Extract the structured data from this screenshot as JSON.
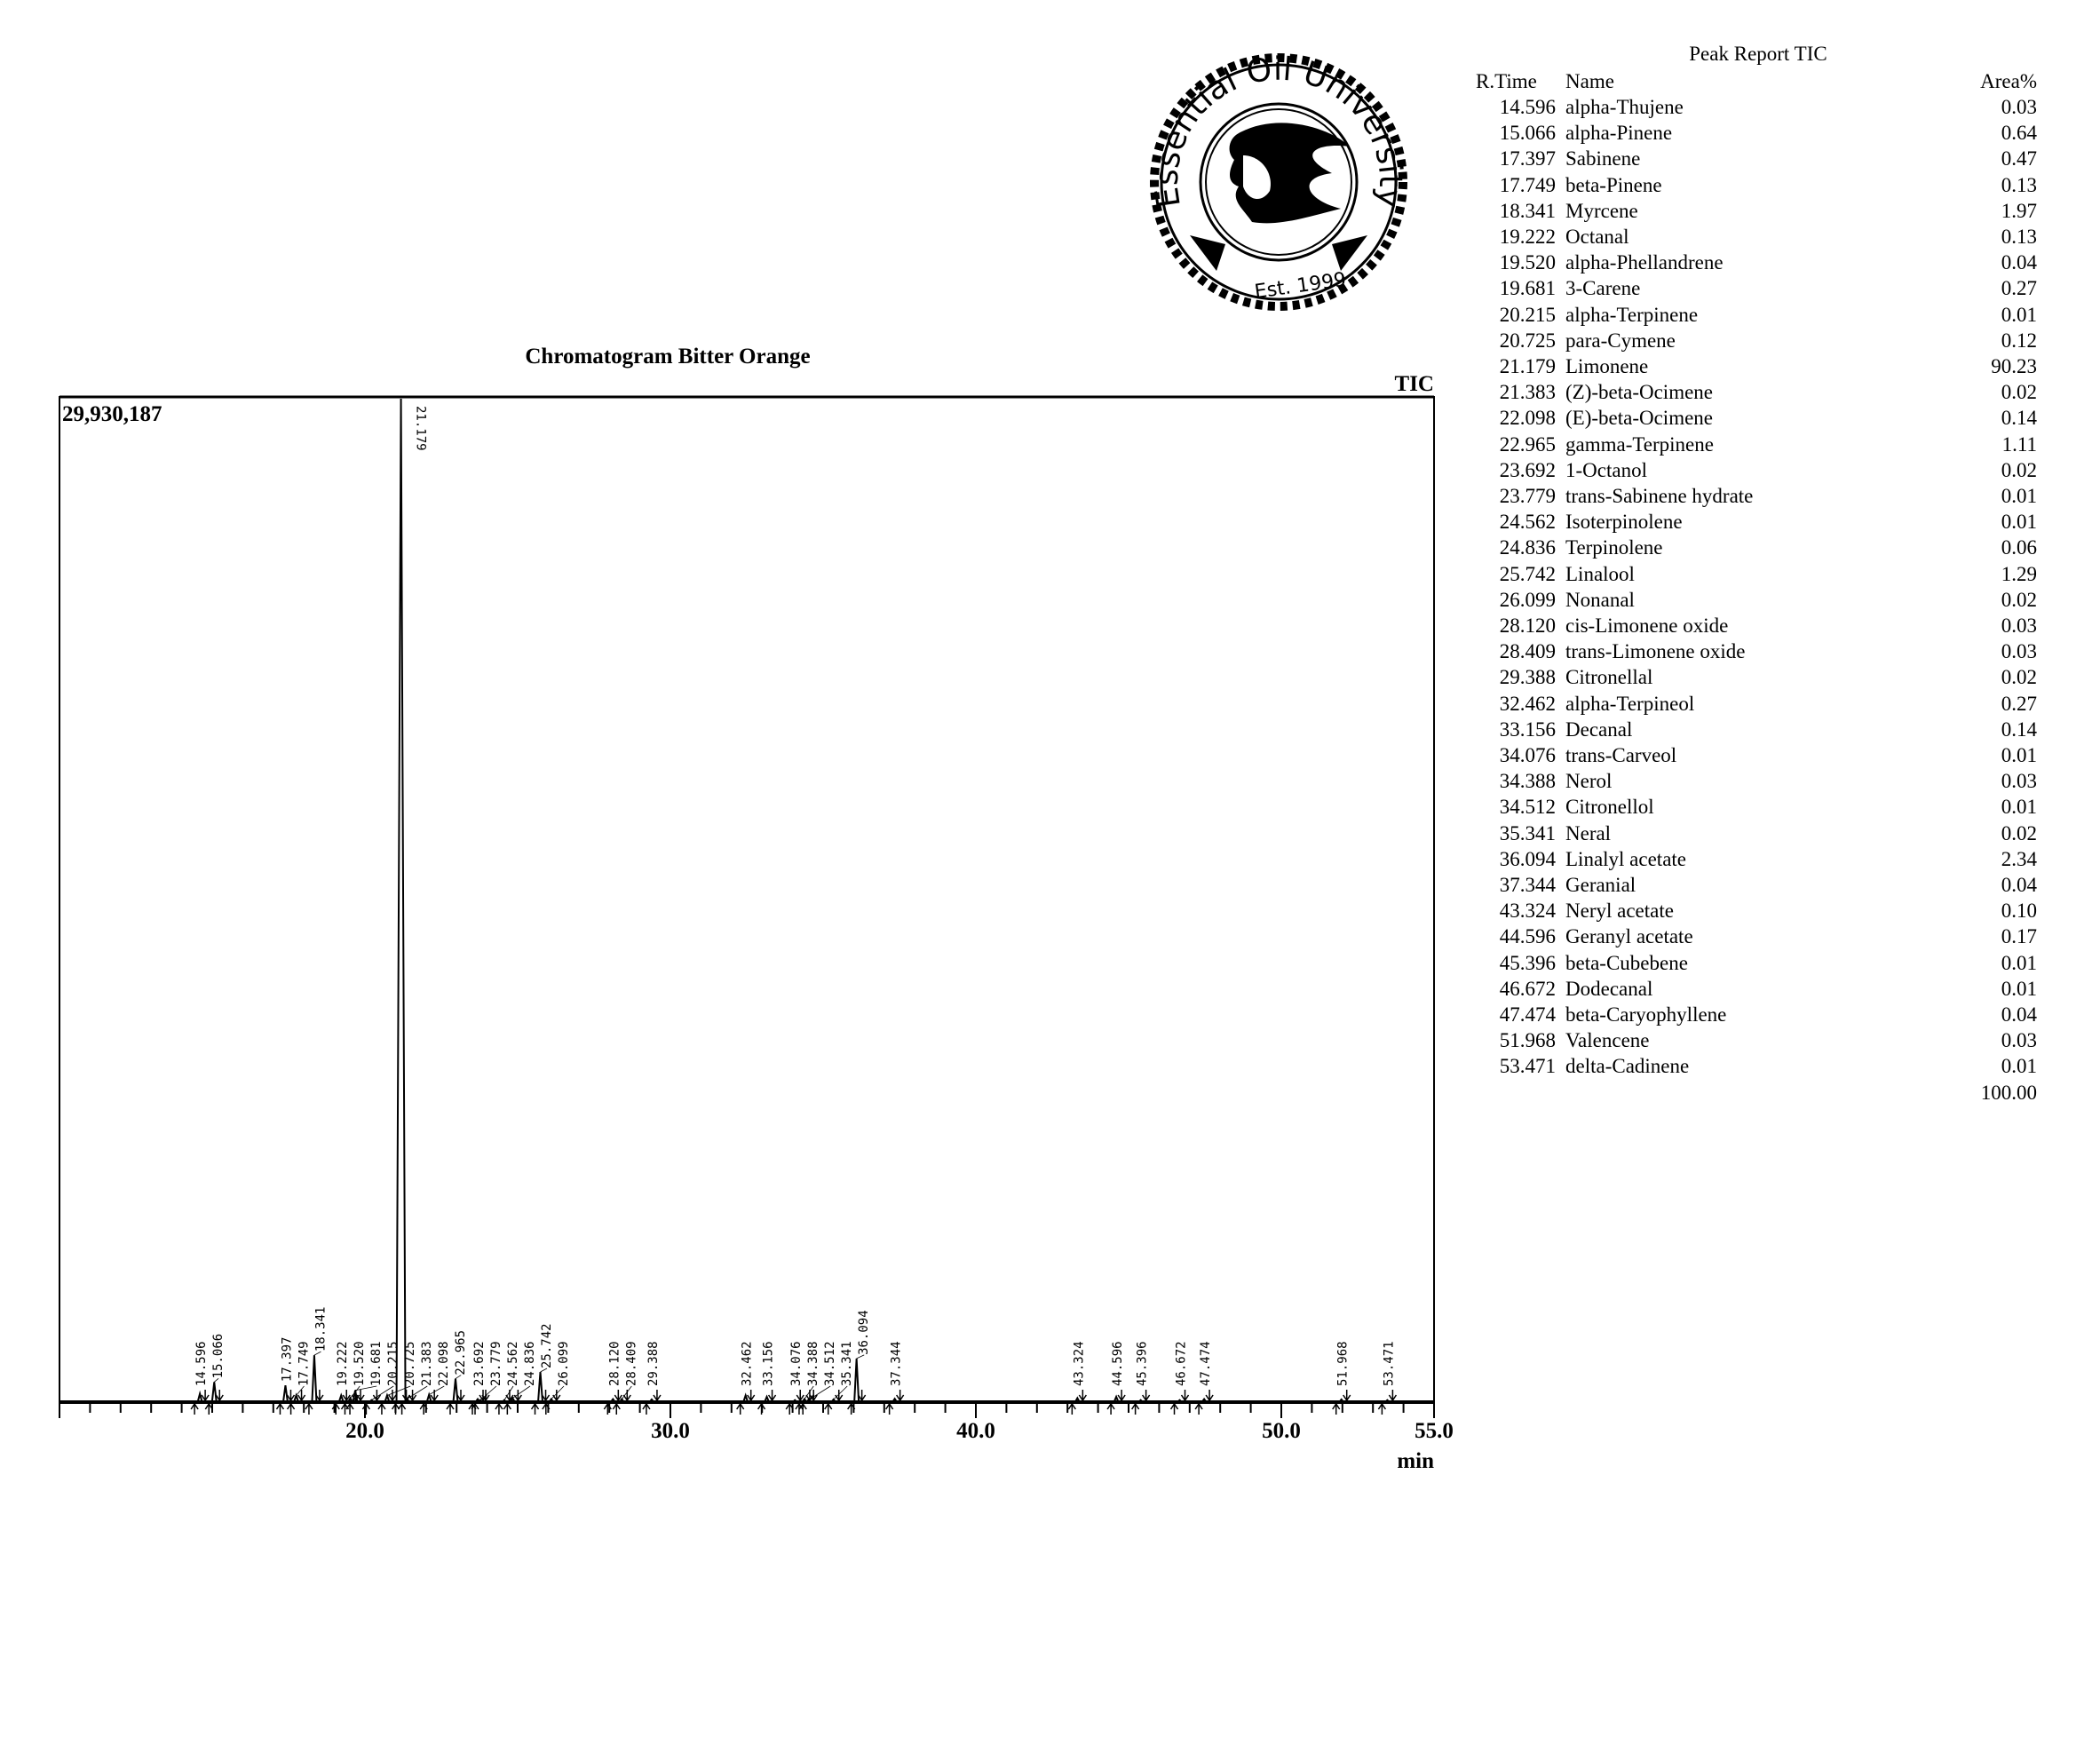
{
  "chart_data": {
    "type": "line",
    "title": "Chromatogram Bitter Orange",
    "series_label": "TIC",
    "y_max_label": "29,930,187",
    "ylim": [
      0,
      29930187
    ],
    "xlabel": "min",
    "xlim": [
      10.0,
      55.0
    ],
    "x_ticks": [
      "20.0",
      "30.0",
      "40.0",
      "50.0",
      "55.0"
    ],
    "x_tick_values": [
      20,
      30,
      40,
      50,
      55
    ],
    "grid": false,
    "color": "#000000",
    "peaks": [
      {
        "rt": "14.596",
        "intensity": 250000
      },
      {
        "rt": "15.066",
        "intensity": 600000
      },
      {
        "rt": "17.397",
        "intensity": 500000
      },
      {
        "rt": "17.749",
        "intensity": 200000
      },
      {
        "rt": "18.341",
        "intensity": 1400000
      },
      {
        "rt": "19.222",
        "intensity": 200000
      },
      {
        "rt": "19.520",
        "intensity": 120000
      },
      {
        "rt": "19.681",
        "intensity": 350000
      },
      {
        "rt": "20.215",
        "intensity": 60000
      },
      {
        "rt": "20.725",
        "intensity": 200000
      },
      {
        "rt": "21.179",
        "intensity": 29930187
      },
      {
        "rt": "21.383",
        "intensity": 100000
      },
      {
        "rt": "22.098",
        "intensity": 220000
      },
      {
        "rt": "22.965",
        "intensity": 700000
      },
      {
        "rt": "23.692",
        "intensity": 90000
      },
      {
        "rt": "23.779",
        "intensity": 60000
      },
      {
        "rt": "24.562",
        "intensity": 60000
      },
      {
        "rt": "24.836",
        "intensity": 120000
      },
      {
        "rt": "25.742",
        "intensity": 900000
      },
      {
        "rt": "26.099",
        "intensity": 90000
      },
      {
        "rt": "28.120",
        "intensity": 90000
      },
      {
        "rt": "28.409",
        "intensity": 90000
      },
      {
        "rt": "29.388",
        "intensity": 80000
      },
      {
        "rt": "32.462",
        "intensity": 200000
      },
      {
        "rt": "33.156",
        "intensity": 160000
      },
      {
        "rt": "34.076",
        "intensity": 60000
      },
      {
        "rt": "34.388",
        "intensity": 90000
      },
      {
        "rt": "34.512",
        "intensity": 60000
      },
      {
        "rt": "35.341",
        "intensity": 80000
      },
      {
        "rt": "36.094",
        "intensity": 1300000
      },
      {
        "rt": "37.344",
        "intensity": 100000
      },
      {
        "rt": "43.324",
        "intensity": 120000
      },
      {
        "rt": "44.596",
        "intensity": 160000
      },
      {
        "rt": "45.396",
        "intensity": 60000
      },
      {
        "rt": "46.672",
        "intensity": 60000
      },
      {
        "rt": "47.474",
        "intensity": 90000
      },
      {
        "rt": "51.968",
        "intensity": 80000
      },
      {
        "rt": "53.471",
        "intensity": 60000
      }
    ]
  },
  "logo": {
    "text": "Essential Oil University",
    "est": "Est. 1999"
  },
  "report": {
    "title": "Peak Report TIC",
    "headers": {
      "rt": "R.Time",
      "name": "Name",
      "area": "Area%"
    },
    "rows": [
      {
        "rt": "14.596",
        "name": "alpha-Thujene",
        "area": "0.03"
      },
      {
        "rt": "15.066",
        "name": "alpha-Pinene",
        "area": "0.64"
      },
      {
        "rt": "17.397",
        "name": "Sabinene",
        "area": "0.47"
      },
      {
        "rt": "17.749",
        "name": "beta-Pinene",
        "area": "0.13"
      },
      {
        "rt": "18.341",
        "name": "Myrcene",
        "area": "1.97"
      },
      {
        "rt": "19.222",
        "name": "Octanal",
        "area": "0.13"
      },
      {
        "rt": "19.520",
        "name": "alpha-Phellandrene",
        "area": "0.04"
      },
      {
        "rt": "19.681",
        "name": "3-Carene",
        "area": "0.27"
      },
      {
        "rt": "20.215",
        "name": "alpha-Terpinene",
        "area": "0.01"
      },
      {
        "rt": "20.725",
        "name": "para-Cymene",
        "area": "0.12"
      },
      {
        "rt": "21.179",
        "name": "Limonene",
        "area": "90.23"
      },
      {
        "rt": "21.383",
        "name": "(Z)-beta-Ocimene",
        "area": "0.02"
      },
      {
        "rt": "22.098",
        "name": "(E)-beta-Ocimene",
        "area": "0.14"
      },
      {
        "rt": "22.965",
        "name": "gamma-Terpinene",
        "area": "1.11"
      },
      {
        "rt": "23.692",
        "name": "1-Octanol",
        "area": "0.02"
      },
      {
        "rt": "23.779",
        "name": "trans-Sabinene hydrate",
        "area": "0.01"
      },
      {
        "rt": "24.562",
        "name": "Isoterpinolene",
        "area": "0.01"
      },
      {
        "rt": "24.836",
        "name": "Terpinolene",
        "area": "0.06"
      },
      {
        "rt": "25.742",
        "name": "Linalool",
        "area": "1.29"
      },
      {
        "rt": "26.099",
        "name": "Nonanal",
        "area": "0.02"
      },
      {
        "rt": "28.120",
        "name": "cis-Limonene oxide",
        "area": "0.03"
      },
      {
        "rt": "28.409",
        "name": "trans-Limonene oxide",
        "area": "0.03"
      },
      {
        "rt": "29.388",
        "name": "Citronellal",
        "area": "0.02"
      },
      {
        "rt": "32.462",
        "name": "alpha-Terpineol",
        "area": "0.27"
      },
      {
        "rt": "33.156",
        "name": "Decanal",
        "area": "0.14"
      },
      {
        "rt": "34.076",
        "name": "trans-Carveol",
        "area": "0.01"
      },
      {
        "rt": "34.388",
        "name": "Nerol",
        "area": "0.03"
      },
      {
        "rt": "34.512",
        "name": "Citronellol",
        "area": "0.01"
      },
      {
        "rt": "35.341",
        "name": "Neral",
        "area": "0.02"
      },
      {
        "rt": "36.094",
        "name": "Linalyl acetate",
        "area": "2.34"
      },
      {
        "rt": "37.344",
        "name": "Geranial",
        "area": "0.04"
      },
      {
        "rt": "43.324",
        "name": "Neryl acetate",
        "area": "0.10"
      },
      {
        "rt": "44.596",
        "name": "Geranyl acetate",
        "area": "0.17"
      },
      {
        "rt": "45.396",
        "name": "beta-Cubebene",
        "area": "0.01"
      },
      {
        "rt": "46.672",
        "name": "Dodecanal",
        "area": "0.01"
      },
      {
        "rt": "47.474",
        "name": "beta-Caryophyllene",
        "area": "0.04"
      },
      {
        "rt": "51.968",
        "name": "Valencene",
        "area": "0.03"
      },
      {
        "rt": "53.471",
        "name": "delta-Cadinene",
        "area": "0.01"
      }
    ],
    "total": "100.00"
  }
}
